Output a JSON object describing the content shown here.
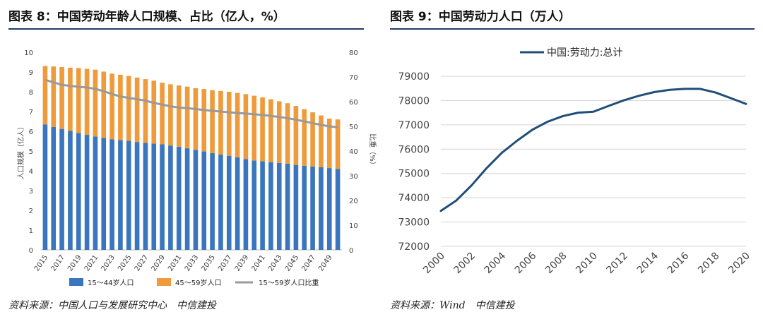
{
  "left": {
    "title": "图表 8：中国劳动年龄人口规模、占比（亿人，%）",
    "source": "资料来源：中国人口与发展研究中心　中信建投",
    "chart_data": {
      "type": "bar",
      "stacked": true,
      "title": "图表 8：中国劳动年龄人口规模、占比（亿人，%）",
      "categories": [
        "2015",
        "2016",
        "2017",
        "2018",
        "2019",
        "2020",
        "2021",
        "2022",
        "2023",
        "2024",
        "2025",
        "2026",
        "2027",
        "2028",
        "2029",
        "2030",
        "2031",
        "2032",
        "2033",
        "2034",
        "2035",
        "2036",
        "2037",
        "2038",
        "2039",
        "2040",
        "2041",
        "2042",
        "2043",
        "2044",
        "2045",
        "2046",
        "2047",
        "2048",
        "2049",
        "2050"
      ],
      "x_tick_labels": [
        "2015",
        "2017",
        "2019",
        "2021",
        "2023",
        "2025",
        "2027",
        "2029",
        "2031",
        "2033",
        "2035",
        "2037",
        "2039",
        "2041",
        "2043",
        "2045",
        "2047",
        "2049"
      ],
      "series": [
        {
          "name": "15～44岁人口",
          "axis": "left",
          "color": "#3a76be",
          "values": [
            6.35,
            6.22,
            6.12,
            6.02,
            5.92,
            5.82,
            5.74,
            5.66,
            5.6,
            5.56,
            5.52,
            5.46,
            5.42,
            5.38,
            5.34,
            5.28,
            5.22,
            5.14,
            5.06,
            4.98,
            4.9,
            4.82,
            4.76,
            4.68,
            4.6,
            4.52,
            4.48,
            4.44,
            4.4,
            4.36,
            4.3,
            4.26,
            4.22,
            4.18,
            4.14,
            4.1
          ]
        },
        {
          "name": "45～59岁人口",
          "axis": "left",
          "color": "#ef9b3b",
          "values": [
            2.95,
            3.06,
            3.13,
            3.2,
            3.28,
            3.34,
            3.38,
            3.36,
            3.32,
            3.3,
            3.28,
            3.26,
            3.22,
            3.18,
            3.12,
            3.1,
            3.1,
            3.12,
            3.12,
            3.16,
            3.18,
            3.22,
            3.24,
            3.26,
            3.28,
            3.28,
            3.24,
            3.18,
            3.12,
            3.06,
            2.98,
            2.86,
            2.74,
            2.62,
            2.5,
            2.5
          ]
        },
        {
          "name": "15～59岁人口比重",
          "axis": "right",
          "color": "#9a9a9a",
          "type": "line",
          "values": [
            68.8,
            67.8,
            66.8,
            66.4,
            66.0,
            65.7,
            65.2,
            64.2,
            63.1,
            62.1,
            61.5,
            61.0,
            60.4,
            59.5,
            58.8,
            58.1,
            57.6,
            57.4,
            57.0,
            56.6,
            56.3,
            56.0,
            55.7,
            55.4,
            55.2,
            54.9,
            54.6,
            54.2,
            53.8,
            53.3,
            52.7,
            52.0,
            51.3,
            50.6,
            50.0,
            49.6
          ]
        }
      ],
      "ylabel": "人口规模（亿人）",
      "ylim": [
        0,
        10
      ],
      "y_ticks": [
        "0",
        "1",
        "2",
        "3",
        "4",
        "5",
        "6",
        "7",
        "8",
        "9",
        "10"
      ],
      "y2label": "比重（%）",
      "y2lim": [
        0,
        80
      ],
      "y2_ticks": [
        "0",
        "10",
        "20",
        "30",
        "40",
        "50",
        "60",
        "70",
        "80"
      ],
      "legend_position": "bottom"
    }
  },
  "right": {
    "title": "图表 9：中国劳动力人口（万人）",
    "source": "资料来源：Wind　中信建投",
    "chart_data": {
      "type": "line",
      "title": "图表 9：中国劳动力人口（万人）",
      "x": [
        2000,
        2001,
        2002,
        2003,
        2004,
        2005,
        2006,
        2007,
        2008,
        2009,
        2010,
        2011,
        2012,
        2013,
        2014,
        2015,
        2016,
        2017,
        2018,
        2019,
        2020
      ],
      "series": [
        {
          "name": "中国:劳动力:总计",
          "color": "#1f4e79",
          "values": [
            73460,
            73880,
            74500,
            75220,
            75850,
            76350,
            76800,
            77130,
            77360,
            77500,
            77540,
            77780,
            78010,
            78200,
            78350,
            78440,
            78480,
            78480,
            78330,
            78100,
            77860
          ]
        }
      ],
      "x_tick_labels": [
        "2000",
        "2002",
        "2004",
        "2006",
        "2008",
        "2010",
        "2012",
        "2014",
        "2016",
        "2018",
        "2020"
      ],
      "xlim": [
        2000,
        2020
      ],
      "ylim": [
        72000,
        79000
      ],
      "y_ticks": [
        "72000",
        "73000",
        "74000",
        "75000",
        "76000",
        "77000",
        "78000",
        "79000"
      ],
      "legend_position": "top"
    }
  }
}
